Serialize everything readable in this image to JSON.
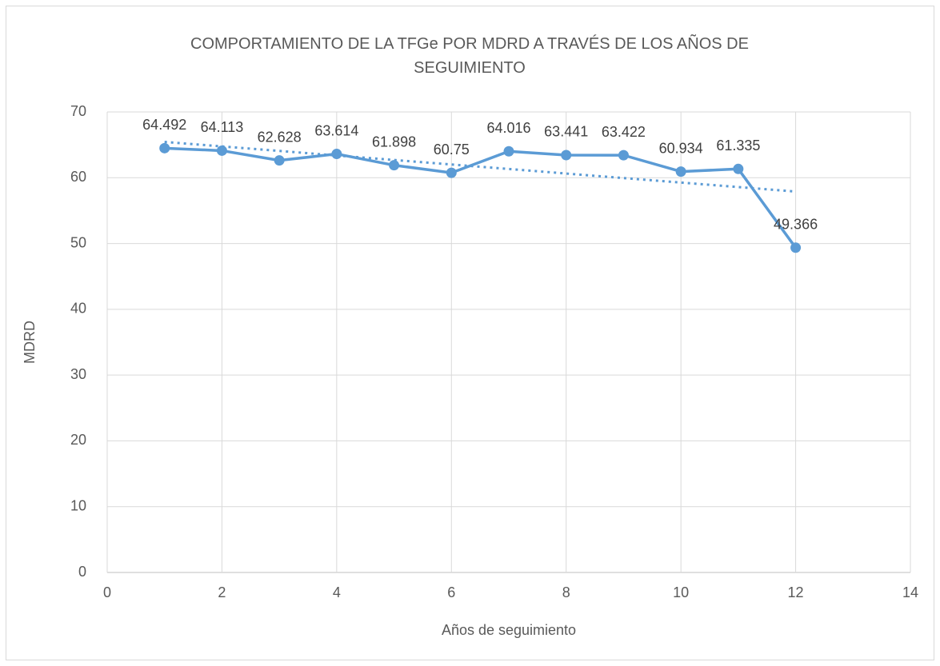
{
  "chart_data": {
    "type": "scatter-line",
    "title": "COMPORTAMIENTO DE LA TFGe POR MDRD A TRAVÉS DE LOS AÑOS DE SEGUIMIENTO",
    "x_label": "Años de seguimiento",
    "y_label": "MDRD",
    "x": [
      1,
      2,
      3,
      4,
      5,
      6,
      7,
      8,
      9,
      10,
      11,
      12
    ],
    "series": [
      {
        "color": "#5b9bd5",
        "values": [
          64.492,
          64.113,
          62.628,
          63.614,
          61.898,
          60.75,
          64.016,
          63.441,
          63.422,
          60.934,
          61.335,
          49.366
        ]
      }
    ],
    "trendline": "linear",
    "xlim": [
      0,
      14
    ],
    "xticks": [
      0,
      2,
      4,
      6,
      8,
      10,
      12,
      14
    ],
    "ylim": [
      0,
      70
    ],
    "yticks": [
      0,
      10,
      20,
      30,
      40,
      50,
      60,
      70
    ],
    "grid": true
  }
}
